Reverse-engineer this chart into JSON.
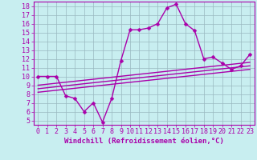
{
  "background_color": "#c8eef0",
  "grid_color": "#9ab8c0",
  "line_color": "#aa00aa",
  "marker": "D",
  "markersize": 2.5,
  "linewidth": 1.0,
  "xlabel": "Windchill (Refroidissement éolien,°C)",
  "xlabel_fontsize": 6.5,
  "tick_fontsize": 6.0,
  "xlim": [
    -0.5,
    23.5
  ],
  "ylim": [
    4.5,
    18.5
  ],
  "xticks": [
    0,
    1,
    2,
    3,
    4,
    5,
    6,
    7,
    8,
    9,
    10,
    11,
    12,
    13,
    14,
    15,
    16,
    17,
    18,
    19,
    20,
    21,
    22,
    23
  ],
  "yticks": [
    5,
    6,
    7,
    8,
    9,
    10,
    11,
    12,
    13,
    14,
    15,
    16,
    17,
    18
  ],
  "series": [
    [
      0,
      10.0
    ],
    [
      1,
      10.0
    ],
    [
      2,
      10.0
    ],
    [
      3,
      7.8
    ],
    [
      4,
      7.5
    ],
    [
      5,
      6.0
    ],
    [
      6,
      7.0
    ],
    [
      7,
      4.8
    ],
    [
      8,
      7.5
    ],
    [
      9,
      11.8
    ],
    [
      10,
      15.3
    ],
    [
      11,
      15.3
    ],
    [
      12,
      15.5
    ],
    [
      13,
      16.0
    ],
    [
      14,
      17.8
    ],
    [
      15,
      18.2
    ],
    [
      16,
      16.0
    ],
    [
      17,
      15.2
    ],
    [
      18,
      12.0
    ],
    [
      19,
      12.2
    ],
    [
      20,
      11.5
    ],
    [
      21,
      10.8
    ],
    [
      22,
      11.2
    ],
    [
      23,
      12.5
    ]
  ],
  "trend_lines": [
    {
      "x0": 0,
      "y0": 8.2,
      "x1": 23,
      "y1": 10.8
    },
    {
      "x0": 0,
      "y0": 8.6,
      "x1": 23,
      "y1": 11.2
    },
    {
      "x0": 0,
      "y0": 9.0,
      "x1": 23,
      "y1": 11.6
    }
  ]
}
